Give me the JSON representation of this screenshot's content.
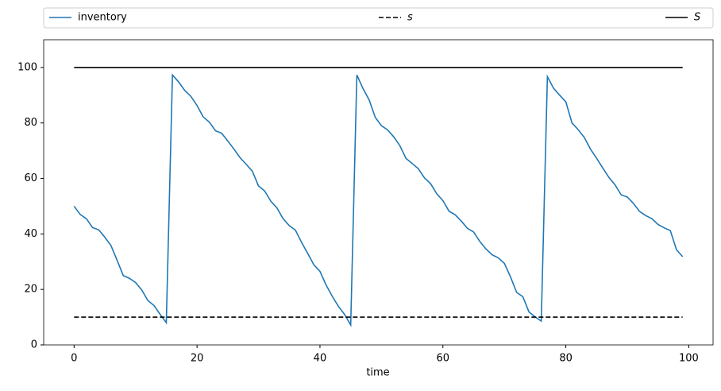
{
  "chart_data": {
    "type": "line",
    "x_label": "time",
    "xlim": [
      -4.95,
      103.95
    ],
    "ylim": [
      0,
      110
    ],
    "xticks": [
      0,
      20,
      40,
      60,
      80,
      100
    ],
    "yticks": [
      0,
      20,
      40,
      60,
      80,
      100
    ],
    "legend": "top-expand",
    "series": [
      {
        "name": "inventory",
        "color": "#1f77b4",
        "dash": "solid",
        "x": [
          0,
          1,
          2,
          3,
          4,
          5,
          6,
          7,
          8,
          9,
          10,
          11,
          12,
          13,
          14,
          15,
          16,
          17,
          18,
          19,
          20,
          21,
          22,
          23,
          24,
          25,
          26,
          27,
          28,
          29,
          30,
          31,
          32,
          33,
          34,
          35,
          36,
          37,
          38,
          39,
          40,
          41,
          42,
          43,
          44,
          45,
          46,
          47,
          48,
          49,
          50,
          51,
          52,
          53,
          54,
          55,
          56,
          57,
          58,
          59,
          60,
          61,
          62,
          63,
          64,
          65,
          66,
          67,
          68,
          69,
          70,
          71,
          72,
          73,
          74,
          75,
          76,
          77,
          78,
          79,
          80,
          81,
          82,
          83,
          84,
          85,
          86,
          87,
          88,
          89,
          90,
          91,
          92,
          93,
          94,
          95,
          96,
          97,
          98,
          99
        ],
        "values": [
          50,
          47,
          45.5,
          42.3,
          41.5,
          38.8,
          35.8,
          30.5,
          25,
          24,
          22.5,
          19.8,
          16,
          14.2,
          11,
          8,
          97.3,
          94.8,
          91.7,
          89.6,
          86.3,
          82.2,
          80.3,
          77.2,
          76.3,
          73.5,
          70.6,
          67.5,
          65.1,
          62.6,
          57.3,
          55.5,
          51.8,
          49.4,
          45.5,
          43,
          41.4,
          37,
          33,
          28.9,
          26.5,
          21.6,
          17.5,
          13.9,
          11,
          7.2,
          97.3,
          92.4,
          88.3,
          82,
          79,
          77.5,
          75,
          71.8,
          67.2,
          65.4,
          63.5,
          60.2,
          58.1,
          54.5,
          52,
          48.2,
          46.9,
          44.6,
          42,
          40.7,
          37.3,
          34.6,
          32.5,
          31.4,
          29.4,
          24.5,
          18.9,
          17.4,
          11.9,
          10.1,
          8.6,
          96.7,
          92.5,
          90,
          87.6,
          80,
          77.6,
          74.8,
          70.6,
          67.3,
          63.8,
          60.4,
          57.7,
          54.1,
          53.3,
          51,
          48.1,
          46.6,
          45.5,
          43.4,
          42.2,
          41.2,
          34.3,
          31.8
        ]
      },
      {
        "name": "s",
        "color": "#000000",
        "dash": "dashed",
        "x": [
          0,
          99
        ],
        "values": [
          10,
          10
        ]
      },
      {
        "name": "S",
        "color": "#000000",
        "dash": "solid",
        "x": [
          0,
          99
        ],
        "values": [
          100,
          100
        ]
      }
    ]
  }
}
